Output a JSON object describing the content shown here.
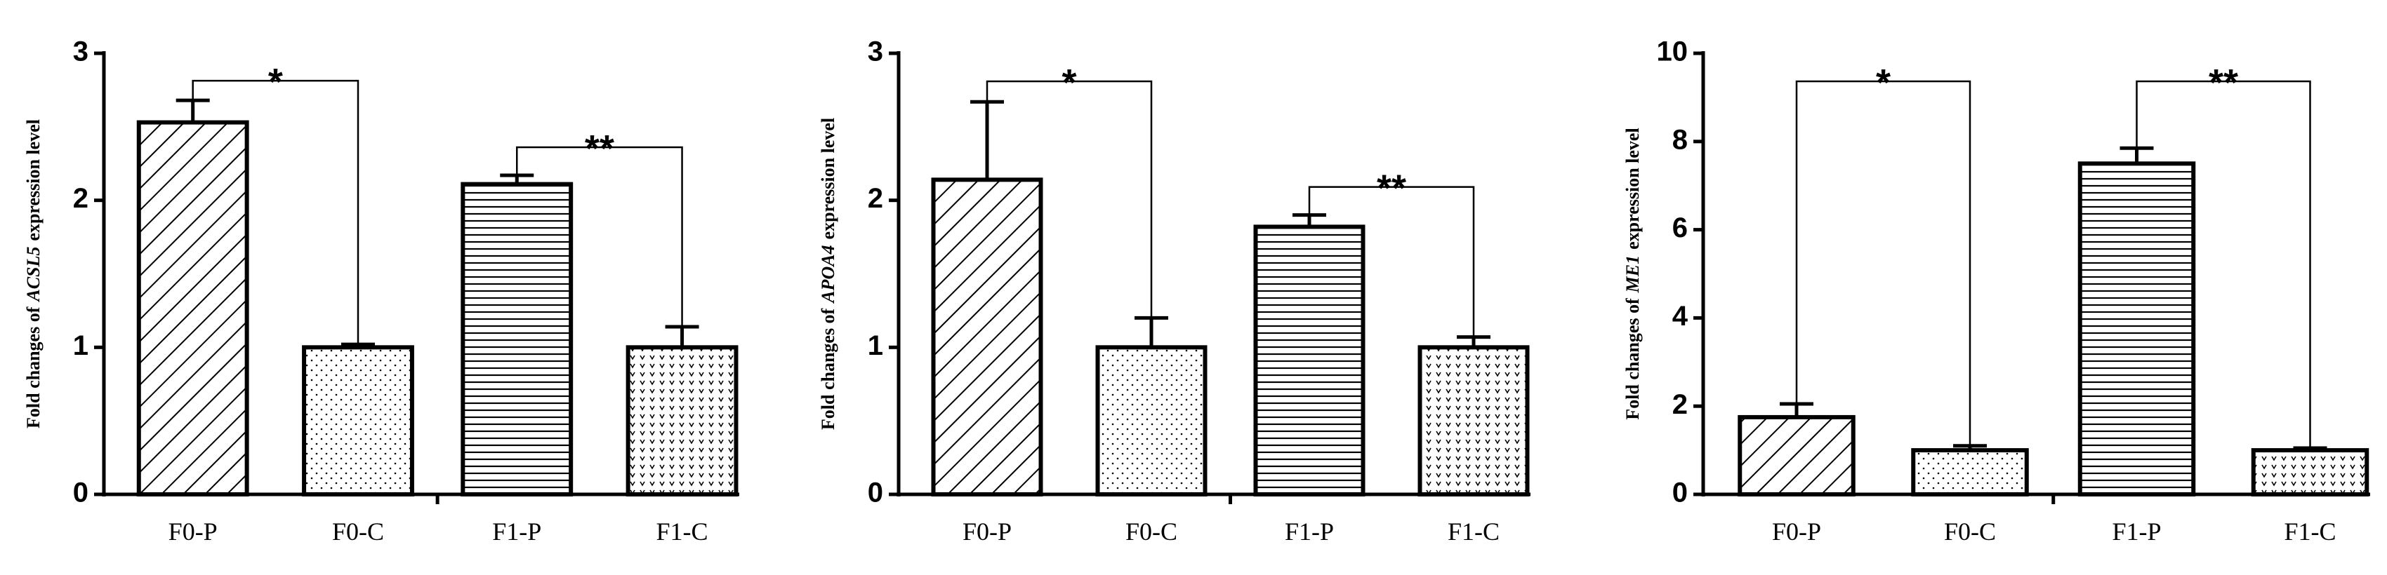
{
  "chart_data": [
    {
      "type": "bar",
      "ylabel_prefix": "Fold changes of",
      "ylabel_gene": "ACSL5",
      "ylabel_suffix": "expression level",
      "categories": [
        "F0-P",
        "F0-C",
        "F1-P",
        "F1-C"
      ],
      "values": [
        2.53,
        1.0,
        2.11,
        1.0
      ],
      "errors": [
        0.15,
        0.02,
        0.06,
        0.14
      ],
      "patterns": [
        "diagonal",
        "dots",
        "horizontal",
        "chevron"
      ],
      "ylim": [
        0,
        3
      ],
      "yticks": [
        0,
        1,
        2,
        3
      ],
      "annotations": [
        {
          "text": "*",
          "between": [
            "F0-P",
            "F0-C"
          ]
        },
        {
          "text": "**",
          "between": [
            "F1-P",
            "F1-C"
          ]
        }
      ]
    },
    {
      "type": "bar",
      "ylabel_prefix": "Fold changes of",
      "ylabel_gene": "APOA4",
      "ylabel_suffix": "expression level",
      "categories": [
        "F0-P",
        "F0-C",
        "F1-P",
        "F1-C"
      ],
      "values": [
        2.14,
        1.0,
        1.82,
        1.0
      ],
      "errors": [
        0.53,
        0.2,
        0.08,
        0.07
      ],
      "patterns": [
        "diagonal",
        "dots",
        "horizontal",
        "chevron"
      ],
      "ylim": [
        0,
        3
      ],
      "yticks": [
        0,
        1,
        2,
        3
      ],
      "annotations": [
        {
          "text": "*",
          "between": [
            "F0-P",
            "F0-C"
          ]
        },
        {
          "text": "**",
          "between": [
            "F1-P",
            "F1-C"
          ]
        }
      ]
    },
    {
      "type": "bar",
      "ylabel_prefix": "Fold changes of",
      "ylabel_gene": "ME1",
      "ylabel_suffix": "expression level",
      "categories": [
        "F0-P",
        "F0-C",
        "F1-P",
        "F1-C"
      ],
      "values": [
        1.75,
        1.0,
        7.5,
        1.0
      ],
      "errors": [
        0.3,
        0.1,
        0.35,
        0.05
      ],
      "patterns": [
        "diagonal",
        "dots",
        "horizontal",
        "chevron"
      ],
      "ylim": [
        0,
        10
      ],
      "yticks": [
        0,
        2,
        4,
        6,
        8,
        10
      ],
      "annotations": [
        {
          "text": "*",
          "between": [
            "F0-P",
            "F0-C"
          ]
        },
        {
          "text": "**",
          "between": [
            "F1-P",
            "F1-C"
          ]
        }
      ]
    }
  ]
}
